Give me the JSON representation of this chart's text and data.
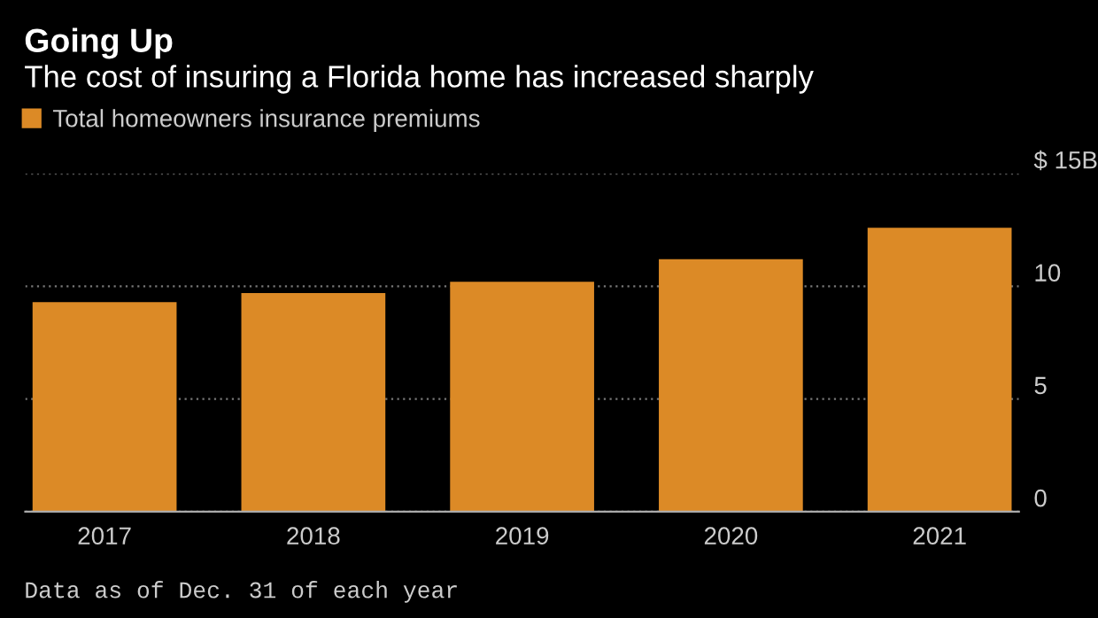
{
  "chart_data": {
    "type": "bar",
    "title": "Going Up",
    "subtitle": "The cost of insuring a Florida home has increased sharply",
    "categories": [
      "2017",
      "2018",
      "2019",
      "2020",
      "2021"
    ],
    "series": [
      {
        "name": "Total homeowners insurance premiums",
        "color": "#dc8a26",
        "values": [
          9.3,
          9.7,
          10.2,
          11.2,
          12.6
        ]
      }
    ],
    "ylim": [
      0,
      15
    ],
    "yticks": [
      0,
      5,
      10,
      {
        "value": 15,
        "label": "$ 15B"
      }
    ],
    "grid": "y",
    "legend": "top left",
    "annotations": [
      "Data as of Dec. 31 of each year"
    ]
  }
}
